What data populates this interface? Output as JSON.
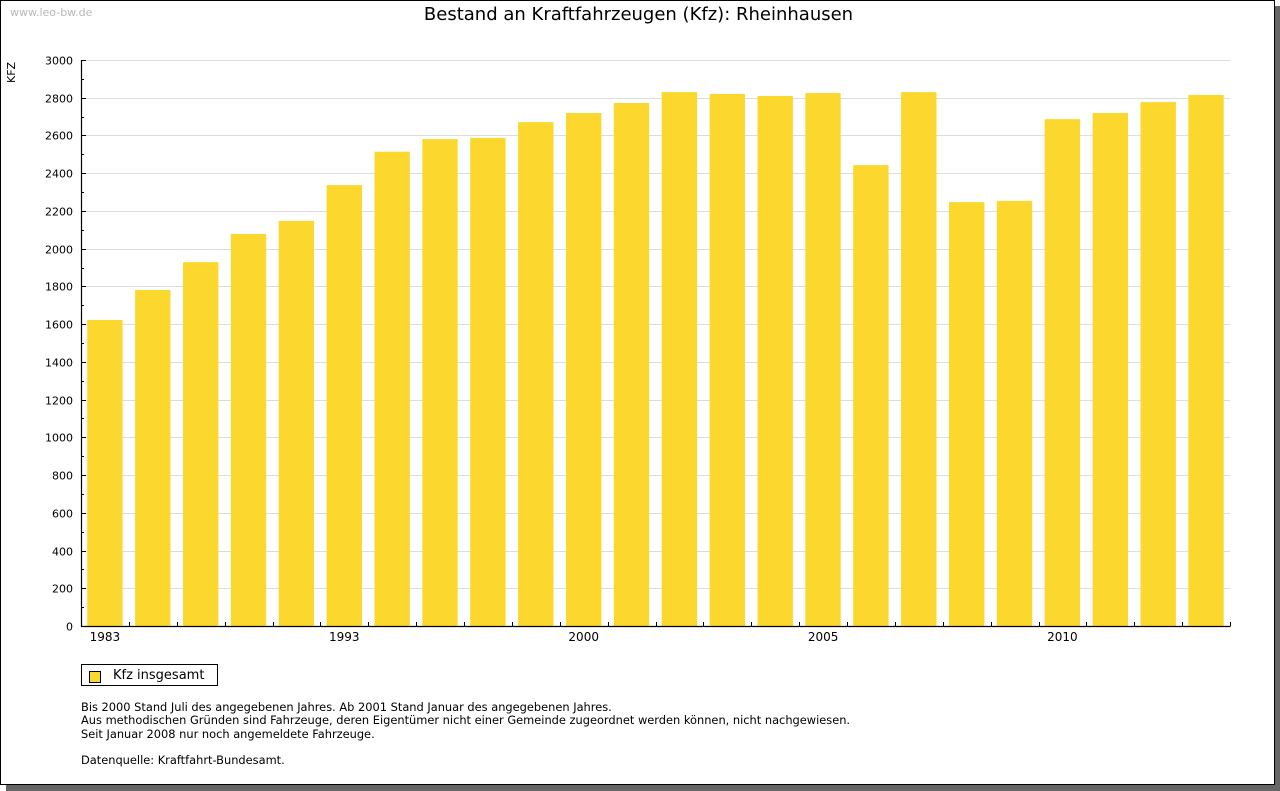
{
  "watermark": "www.leo-bw.de",
  "colors": {
    "bar": "#FCD82E",
    "grid": "#DDDDDD",
    "axis": "#000000",
    "frame_shadow": "#666666"
  },
  "chart_data": {
    "type": "bar",
    "title": "Bestand an Kraftfahrzeugen (Kfz): Rheinhausen",
    "xlabel": "",
    "ylabel": "KFZ",
    "ylim": [
      0,
      3000
    ],
    "y_ticks": [
      "0",
      "200",
      "400",
      "600",
      "800",
      "1000",
      "1200",
      "1400",
      "1600",
      "1800",
      "2000",
      "2200",
      "2400",
      "2600",
      "2800",
      "3000"
    ],
    "y_tick_step": 200,
    "grid": true,
    "categories": [
      "1983",
      "",
      "",
      "",
      "",
      "1993",
      "",
      "",
      "",
      "",
      "2000",
      "",
      "",
      "",
      "",
      "2005",
      "",
      "",
      "",
      "",
      "2010",
      "",
      "",
      ""
    ],
    "x_tick_labels": [
      {
        "index": 0,
        "label": "1983"
      },
      {
        "index": 5,
        "label": "1993"
      },
      {
        "index": 10,
        "label": "2000"
      },
      {
        "index": 15,
        "label": "2005"
      },
      {
        "index": 20,
        "label": "2010"
      }
    ],
    "series": [
      {
        "name": "Kfz insgesamt",
        "values": [
          1622,
          1781,
          1929,
          2078,
          2147,
          2337,
          2514,
          2581,
          2587,
          2671,
          2719,
          2772,
          2830,
          2820,
          2809,
          2825,
          2443,
          2830,
          2247,
          2253,
          2687,
          2719,
          2777,
          2815
        ]
      }
    ],
    "legend": {
      "position": "bottom-left",
      "entries": [
        "Kfz insgesamt"
      ]
    }
  },
  "notes": [
    "Bis 2000 Stand Juli des angegebenen Jahres. Ab 2001 Stand Januar des angegebenen Jahres.",
    "Aus methodischen Gründen sind Fahrzeuge, deren Eigentümer nicht einer Gemeinde zugeordnet werden können, nicht nachgewiesen.",
    "Seit Januar 2008 nur noch angemeldete Fahrzeuge."
  ],
  "source": "Datenquelle: Kraftfahrt-Bundesamt."
}
